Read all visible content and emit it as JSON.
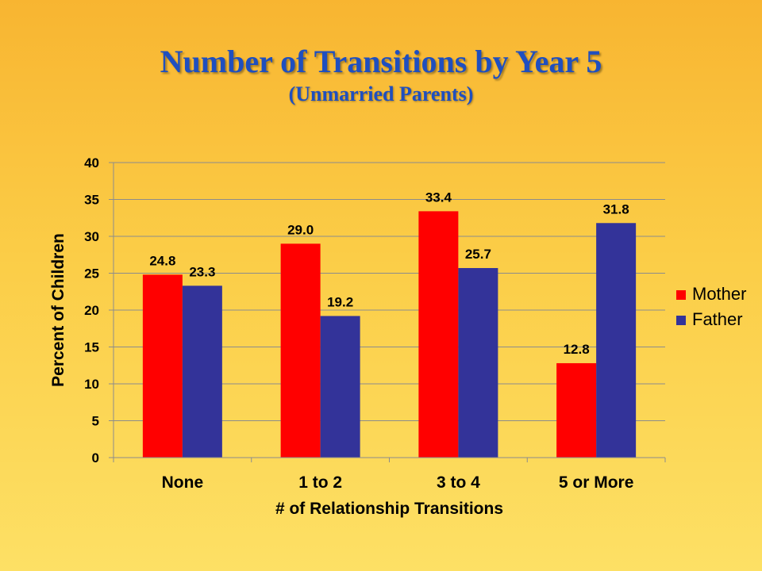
{
  "chart_data": {
    "type": "bar",
    "title": "Number of Transitions by Year 5",
    "subtitle": "(Unmarried Parents)",
    "xlabel": "# of Relationship Transitions",
    "ylabel": "Percent of Children",
    "ylim": [
      0,
      40
    ],
    "yticks": [
      0,
      5,
      10,
      15,
      20,
      25,
      30,
      35,
      40
    ],
    "grid": true,
    "legend": "right",
    "categories": [
      "None",
      "1 to 2",
      "3 to 4",
      "5 or More"
    ],
    "series": [
      {
        "name": "Mother",
        "color": "#ff0000",
        "values": [
          24.8,
          29.0,
          33.4,
          12.8
        ],
        "labels": [
          "24.8",
          "29.0",
          "33.4",
          "12.8"
        ]
      },
      {
        "name": "Father",
        "color": "#333399",
        "values": [
          23.3,
          19.2,
          25.7,
          31.8
        ],
        "labels": [
          "23.3",
          "19.2",
          "25.7",
          "31.8"
        ]
      }
    ]
  }
}
